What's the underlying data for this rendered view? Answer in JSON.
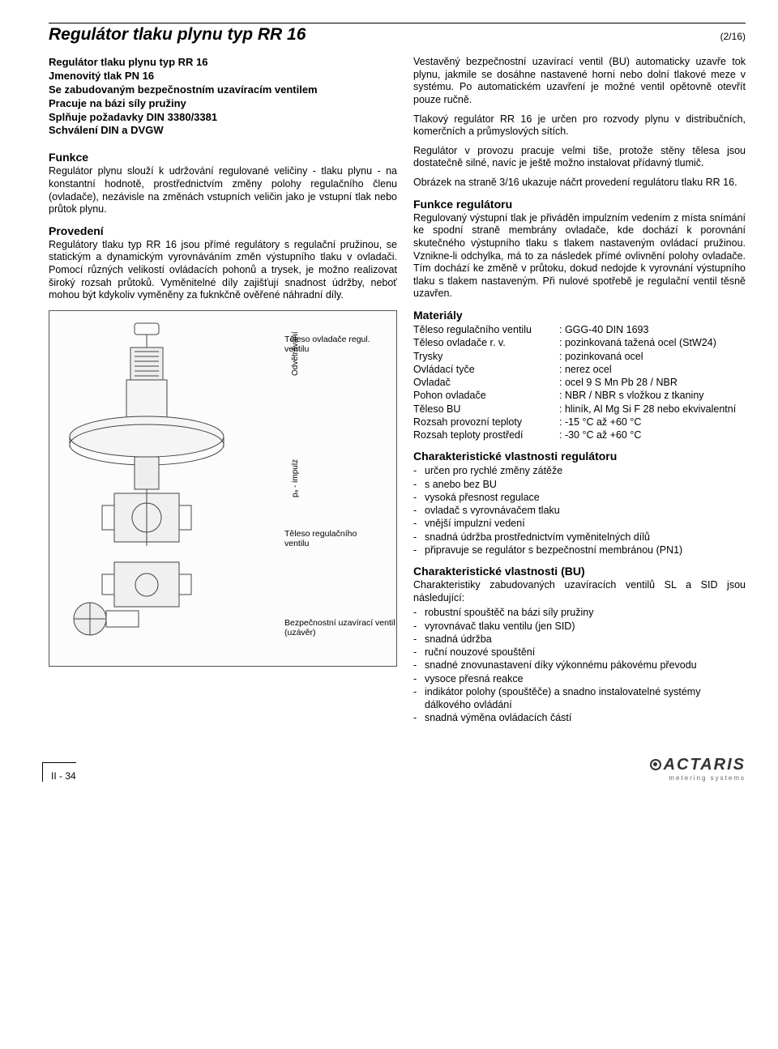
{
  "header": {
    "title": "Regulátor tlaku plynu typ RR 16",
    "page": "(2/16)"
  },
  "intro": {
    "l1": "Regulátor tlaku plynu typ RR 16",
    "l2": "Jmenovitý tlak PN 16",
    "l3": "Se zabudovaným bezpečnostním uzavíracím ventilem",
    "l4": "Pracuje na bázi síly pružiny",
    "l5": "Splňuje požadavky DIN 3380/3381",
    "l6": "Schválení DIN a DVGW"
  },
  "left": {
    "funkce_title": "Funkce",
    "funkce_text": "Regulátor plynu slouží k udržování regulované veličiny - tlaku plynu - na konstantní hodnotě, prostřednictvím změny polohy regulačního členu (ovladače), nezávisle na změnách vstupních veličin jako je vstupní tlak nebo průtok plynu.",
    "provedeni_title": "Provedení",
    "provedeni_text": "Regulátory tlaku typ RR 16 jsou přímé regulátory s regulační pružinou, se statickým a dynamickým vyrovnáváním změn výstupního tlaku v ovladači. Pomocí různých velikostí ovládacích pohonů a trysek, je možno realizovat široký rozsah průtoků. Vyměnitelné díly zajišťují snadnost údržby, neboť mohou být kdykoliv vyměněny za fuknkčně ověřené náhradní díly."
  },
  "diagram": {
    "lbl1": "Těleso ovladače regul. ventilu",
    "lbl2": "Odvětrávání",
    "lbl3": "pₐ - impulz",
    "lbl4": "Těleso regulačního ventilu",
    "lbl5": "Bezpečnostní uzavírací ventil (uzávěr)"
  },
  "right": {
    "p1": "Vestavěný bezpečnostní uzavírací ventil (BU) automaticky uzavře tok plynu, jakmile se dosáhne nastavené horní nebo dolní tlakové meze v systému. Po automatickém uzavření je možné ventil opětovně otevřít pouze ručně.",
    "p2": "Tlakový regulátor RR 16 je určen pro rozvody plynu v distribučních, komerčních a průmyslových sítích.",
    "p3": "Regulátor v provozu pracuje velmi tiše, protože stěny tělesa jsou dostatečně silné, navíc je ještě možno instalovat přídavný tlumič.",
    "p4": "Obrázek na straně 3/16 ukazuje náčrt provedení regulátoru tlaku RR 16.",
    "funkce_reg_title": "Funkce regulátoru",
    "funkce_reg_text": "Regulovaný výstupní tlak je přiváděn impulzním vedením z místa snímání ke spodní straně membrány ovladače, kde dochází k porovnání skutečného výstupního tlaku s tlakem nastaveným ovládací pružinou. Vznikne-li odchylka, má to za následek přímé ovlivnění polohy ovladače. Tím dochází ke změně v průtoku, dokud nedojde k vyrovnání výstupního tlaku s tlakem nastaveným. Při nulové spotřebě je regulační ventil těsně uzavřen.",
    "materialy_title": "Materiály",
    "materials": [
      {
        "label": "Těleso regulačního ventilu",
        "value": ": GGG-40 DIN 1693"
      },
      {
        "label": "Těleso ovladače r. v.",
        "value": ": pozinkovaná tažená ocel (StW24)"
      },
      {
        "label": "Trysky",
        "value": ": pozinkovaná ocel"
      },
      {
        "label": "Ovládací tyče",
        "value": ": nerez ocel"
      },
      {
        "label": "Ovladač",
        "value": ": ocel 9 S Mn Pb 28 / NBR"
      },
      {
        "label": "Pohon ovladače",
        "value": ": NBR / NBR s vložkou z tkaniny"
      },
      {
        "label": "Těleso BU",
        "value": ": hliník, Al Mg Si F 28 nebo ekvivalentní"
      },
      {
        "label": "Rozsah provozní teploty",
        "value": ": -15 °C až +60 °C"
      },
      {
        "label": "Rozsah teploty prostředí",
        "value": ": -30 °C až +60 °C"
      }
    ],
    "char_reg_title": "Charakteristické vlastnosti regulátoru",
    "char_reg": [
      "určen pro rychlé změny zátěže",
      "s anebo bez BU",
      "vysoká přesnost regulace",
      "ovladač s vyrovnávačem tlaku",
      "vnější impulzní vedení",
      "snadná údržba prostřednictvím vyměnitelných dílů",
      "připravuje se regulátor s bezpečnostní membránou (PN1)"
    ],
    "char_bu_title": "Charakteristické vlastnosti (BU)",
    "char_bu_intro": "Charakteristiky zabudovaných uzavíracích ventilů SL a SID jsou následující:",
    "char_bu": [
      "robustní spouštěč na bázi síly pružiny",
      "vyrovnávač tlaku ventilu (jen SID)",
      "snadná údržba",
      "ruční nouzové spouštění",
      "snadné znovunastavení díky výkonnému pákovému převodu",
      "vysoce přesná reakce",
      "indikátor polohy (spouštěče) a snadno instalovatelné systémy dálkového ovládání",
      "snadná výměna ovládacích částí"
    ]
  },
  "footer": {
    "page": "II - 34",
    "logo": "ACTARIS",
    "logo_sub": "metering systems"
  }
}
